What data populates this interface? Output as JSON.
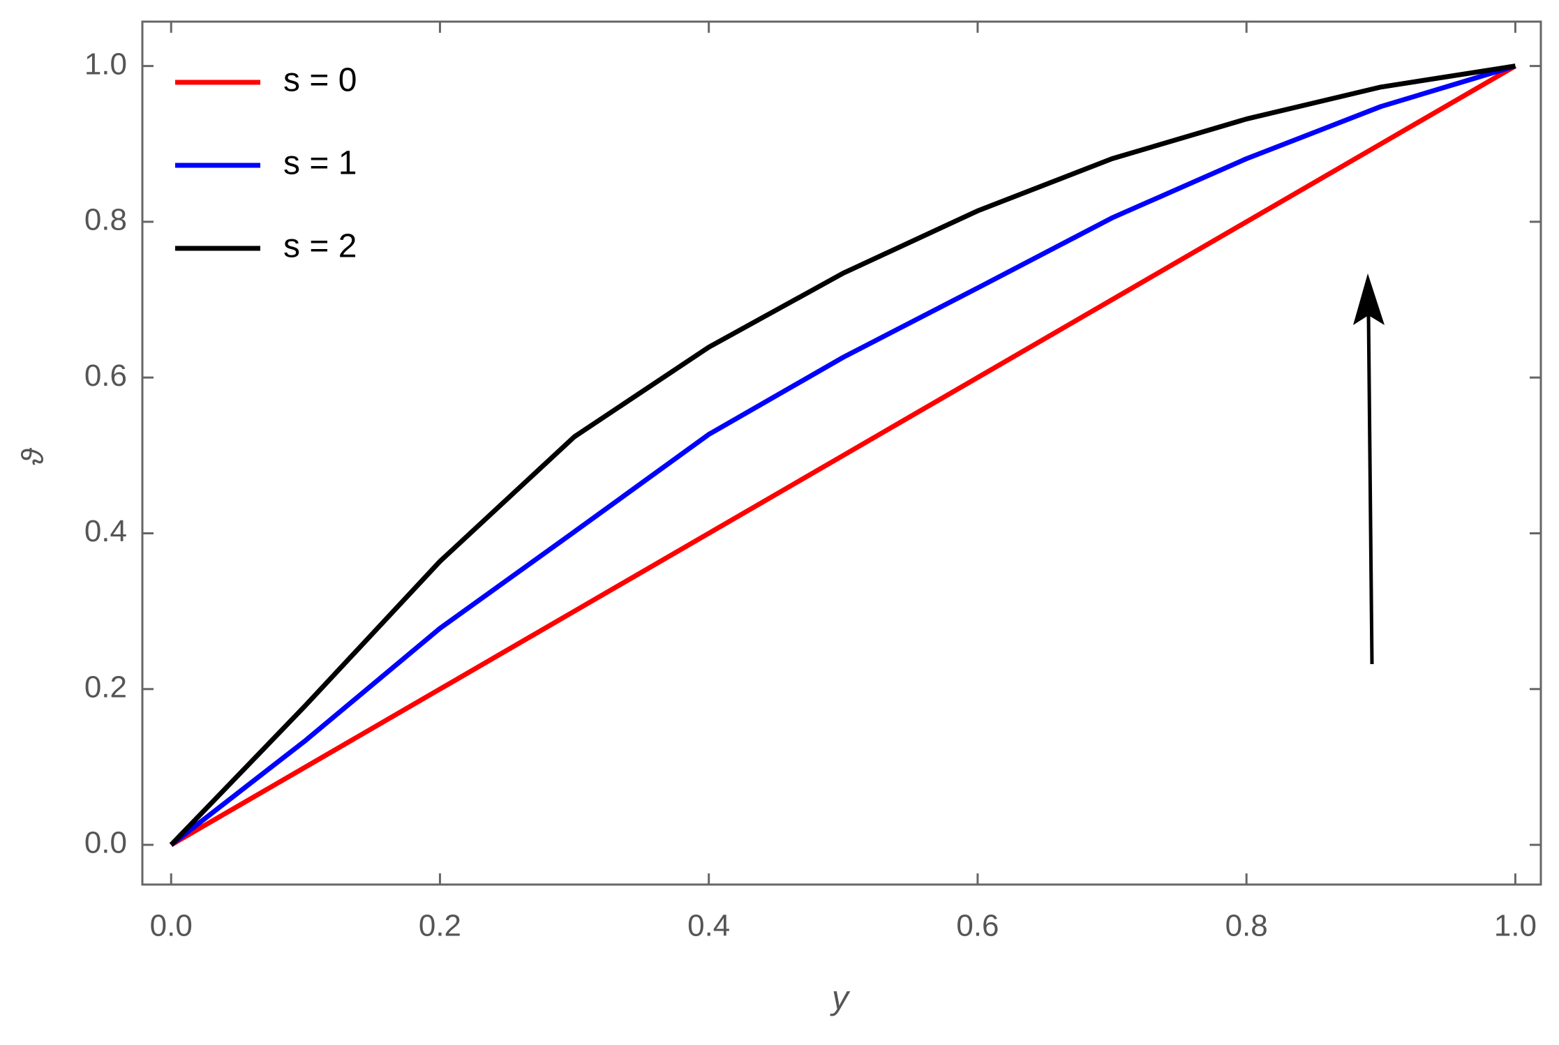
{
  "chart_data": {
    "type": "line",
    "x_label": "y",
    "y_label": "ϑ",
    "x": [
      0,
      0.1,
      0.2,
      0.3,
      0.4,
      0.5,
      0.6,
      0.7,
      0.8,
      0.9,
      1
    ],
    "series": [
      {
        "name": "s = 0",
        "color": "#ff0000",
        "values": [
          0,
          0.1,
          0.2,
          0.3,
          0.4,
          0.5,
          0.6,
          0.7,
          0.8,
          0.9,
          1
        ]
      },
      {
        "name": "s = 1",
        "color": "#0000ff",
        "values": [
          0,
          0.134,
          0.278,
          0.402,
          0.527,
          0.626,
          0.715,
          0.805,
          0.881,
          0.948,
          1
        ]
      },
      {
        "name": "s = 2",
        "color": "#000000",
        "values": [
          0,
          0.179,
          0.364,
          0.524,
          0.639,
          0.734,
          0.814,
          0.881,
          0.932,
          0.973,
          1
        ]
      }
    ],
    "xlim": [
      -0.0214,
      1.019
    ],
    "ylim": [
      -0.051,
      1.057
    ],
    "xticks": [
      {
        "value": 0,
        "label": "0.0"
      },
      {
        "value": 0.2,
        "label": "0.2"
      },
      {
        "value": 0.4,
        "label": "0.4"
      },
      {
        "value": 0.6,
        "label": "0.6"
      },
      {
        "value": 0.8,
        "label": "0.8"
      },
      {
        "value": 1,
        "label": "1.0"
      }
    ],
    "yticks": [
      {
        "value": 0,
        "label": "0.0"
      },
      {
        "value": 0.2,
        "label": "0.2"
      },
      {
        "value": 0.4,
        "label": "0.4"
      },
      {
        "value": 0.6,
        "label": "0.6"
      },
      {
        "value": 0.8,
        "label": "0.8"
      },
      {
        "value": 1,
        "label": "1.0"
      }
    ],
    "legend": "upper-left",
    "grid": false
  }
}
